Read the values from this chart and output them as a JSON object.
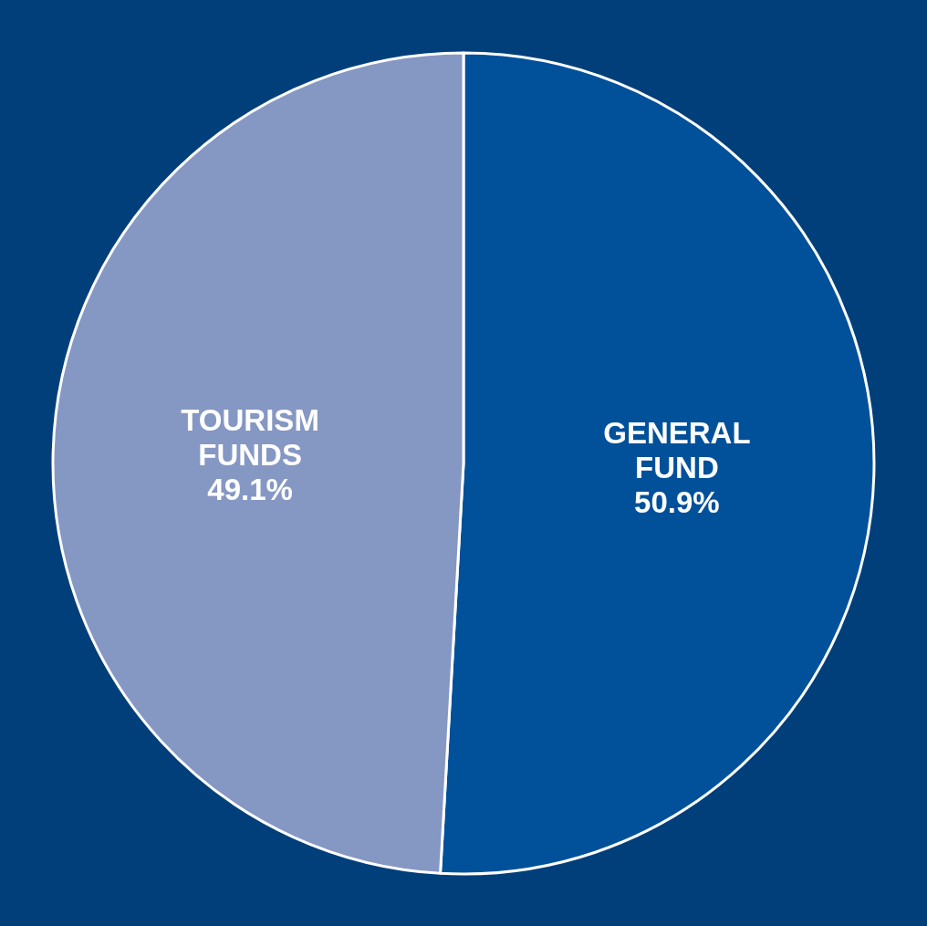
{
  "chart_data": {
    "type": "pie",
    "categories": [
      "GENERAL FUND",
      "TOURISM FUNDS"
    ],
    "values": [
      50.9,
      49.1
    ],
    "colors": [
      "#00509a",
      "#8597c3"
    ],
    "value_labels": [
      "50.9%",
      "49.1%"
    ],
    "legend": false
  }
}
